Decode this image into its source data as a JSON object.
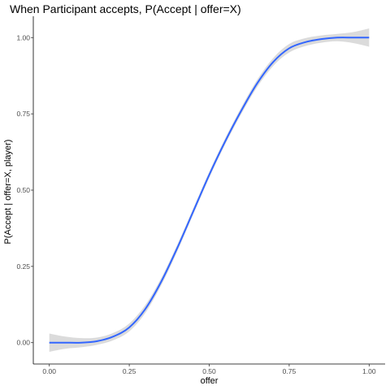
{
  "chart_data": {
    "type": "line",
    "title": "When Participant accepts, P(Accept | offer=X)",
    "xlabel": "offer",
    "ylabel": "P(Accept | offer=X, player)",
    "xlim": [
      -0.05,
      1.05
    ],
    "ylim": [
      -0.07,
      1.07
    ],
    "x_ticks": [
      0.0,
      0.25,
      0.5,
      0.75,
      1.0
    ],
    "x_tick_labels": [
      "0.00",
      "0.25",
      "0.50",
      "0.75",
      "1.00"
    ],
    "y_ticks": [
      0.0,
      0.25,
      0.5,
      0.75,
      1.0
    ],
    "y_tick_labels": [
      "0.00",
      "0.25",
      "0.50",
      "0.75",
      "1.00"
    ],
    "grid": false,
    "series": [
      {
        "color": "#3366ff",
        "band_color": "#d9d9d9",
        "x": [
          0.0,
          0.05,
          0.1,
          0.15,
          0.2,
          0.25,
          0.3,
          0.35,
          0.4,
          0.45,
          0.5,
          0.55,
          0.6,
          0.65,
          0.7,
          0.75,
          0.8,
          0.85,
          0.9,
          0.95,
          1.0
        ],
        "y": [
          0.0,
          0.0,
          0.0,
          0.005,
          0.02,
          0.05,
          0.11,
          0.2,
          0.31,
          0.43,
          0.55,
          0.66,
          0.76,
          0.85,
          0.92,
          0.965,
          0.985,
          0.995,
          1.0,
          1.0,
          1.0
        ],
        "ci_halfwidth": [
          0.03,
          0.02,
          0.015,
          0.012,
          0.012,
          0.013,
          0.013,
          0.012,
          0.011,
          0.01,
          0.01,
          0.01,
          0.011,
          0.012,
          0.013,
          0.014,
          0.013,
          0.012,
          0.012,
          0.018,
          0.03
        ]
      }
    ]
  }
}
